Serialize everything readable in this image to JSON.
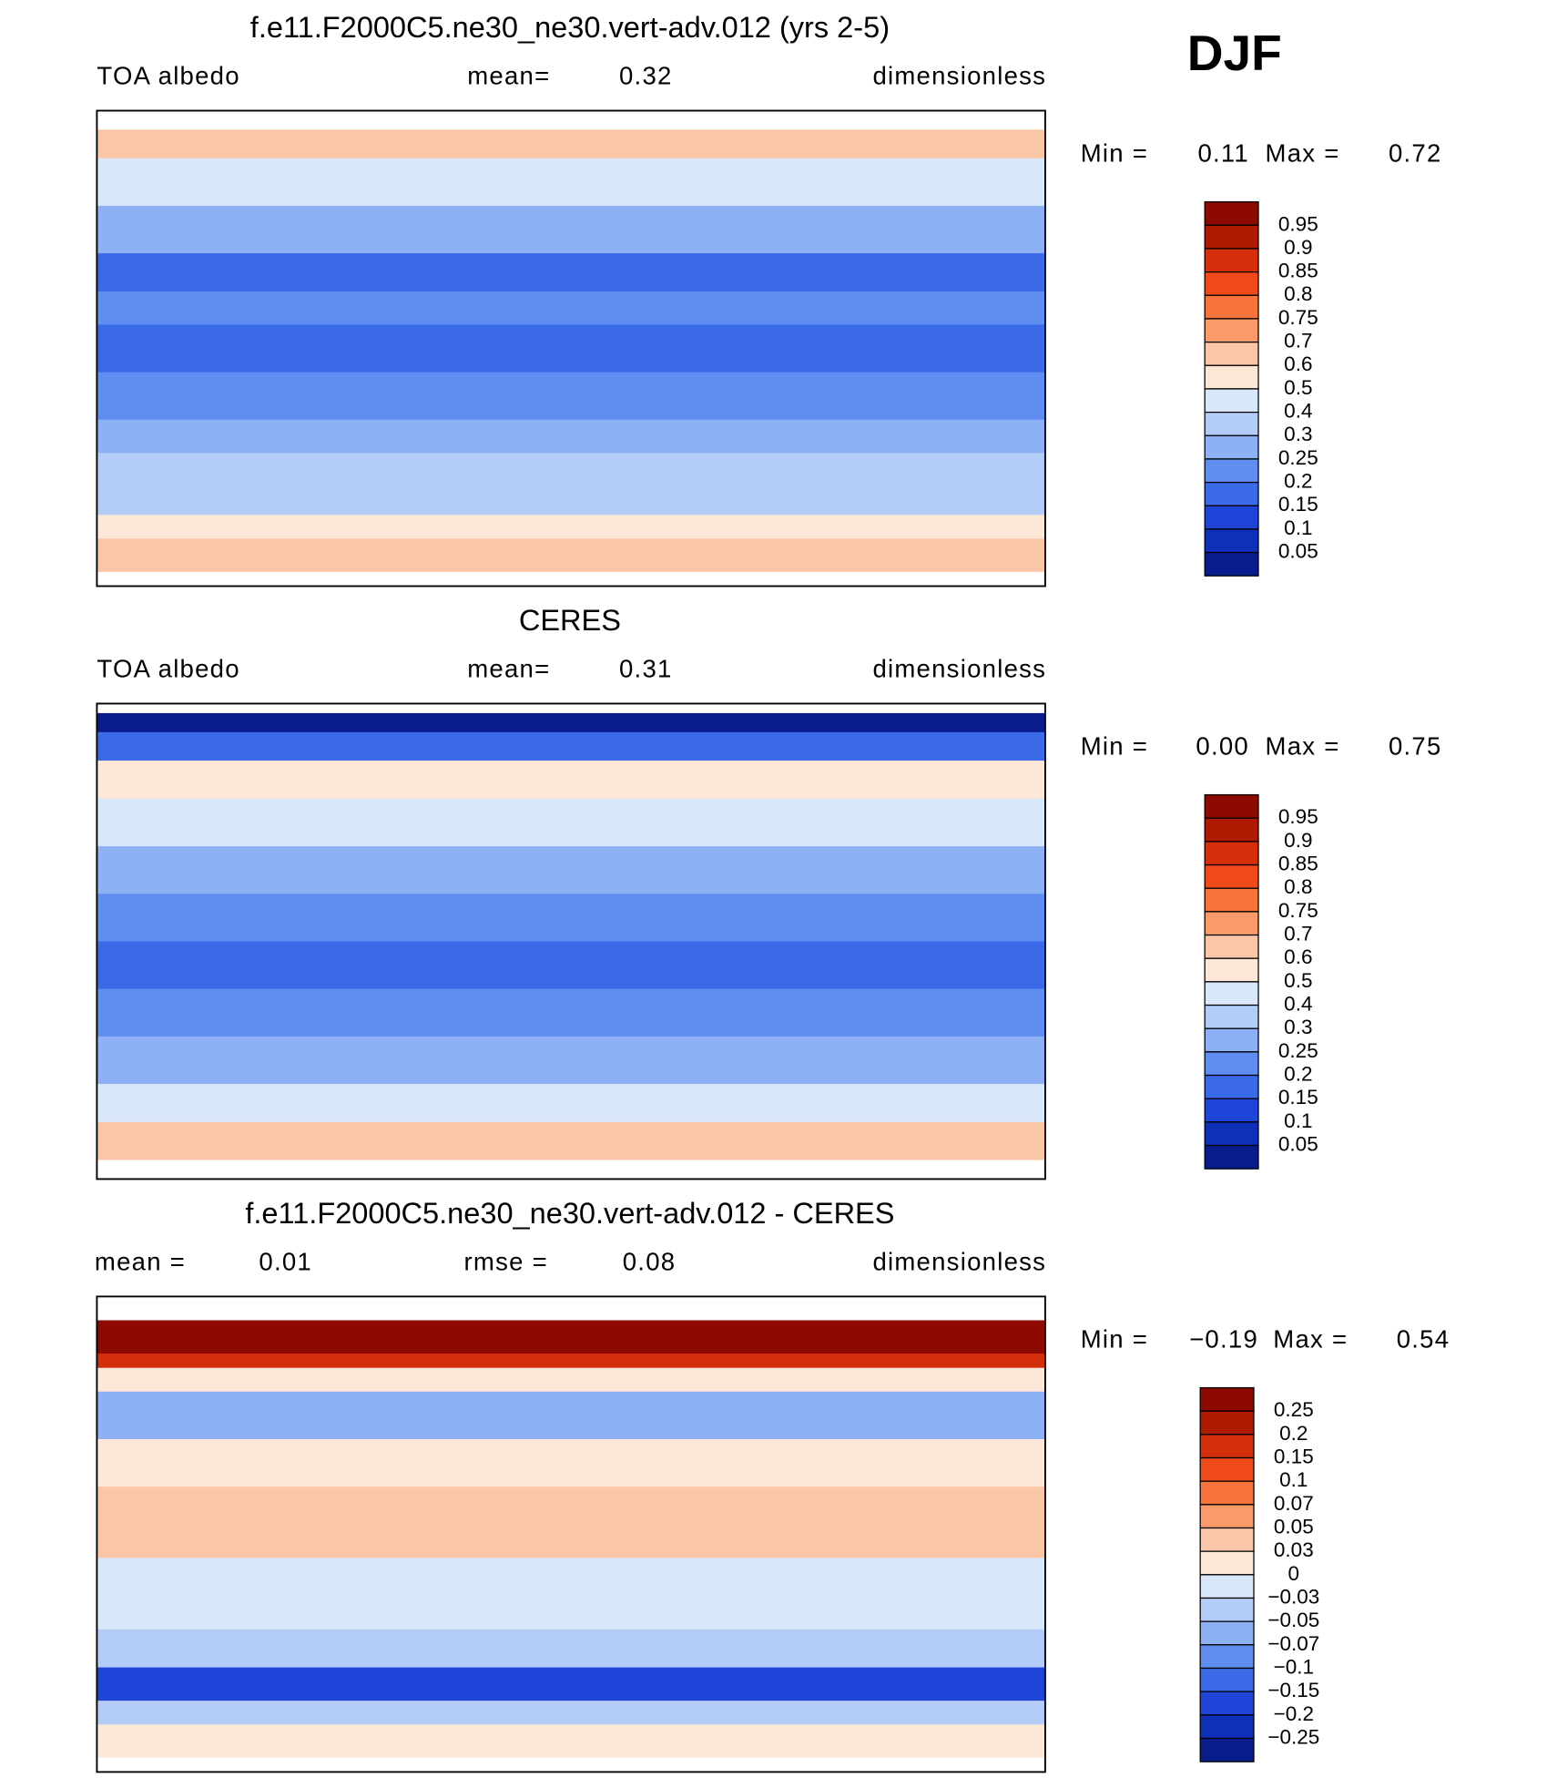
{
  "header": "DJF",
  "panels": [
    {
      "title": "f.e11.F2000C5.ne30_ne30.vert-adv.012 (yrs 2-5)",
      "subtitle": [
        "TOA  albedo",
        "mean=",
        "0.32",
        "dimensionless"
      ],
      "min_label": "Min =",
      "min": "0.11",
      "max_label": "Max =",
      "max": "0.72",
      "colorbar": [
        "0.95",
        "0.9",
        "0.85",
        "0.8",
        "0.75",
        "0.7",
        "0.6",
        "0.5",
        "0.4",
        "0.3",
        "0.25",
        "0.2",
        "0.15",
        "0.1",
        "0.05"
      ]
    },
    {
      "title": "CERES",
      "subtitle": [
        "TOA  albedo",
        "mean=",
        "0.31",
        "dimensionless"
      ],
      "min_label": "Min =",
      "min": "0.00",
      "max_label": "Max =",
      "max": "0.75",
      "colorbar": [
        "0.95",
        "0.9",
        "0.85",
        "0.8",
        "0.75",
        "0.7",
        "0.6",
        "0.5",
        "0.4",
        "0.3",
        "0.25",
        "0.2",
        "0.15",
        "0.1",
        "0.05"
      ]
    },
    {
      "title": "f.e11.F2000C5.ne30_ne30.vert-adv.012 - CERES",
      "subtitle": [
        "mean =",
        "0.01",
        "rmse =",
        "0.08",
        "dimensionless"
      ],
      "min_label": "Min =",
      "min": "−0.19",
      "max_label": "Max =",
      "max": "0.54",
      "colorbar": [
        "0.25",
        "0.2",
        "0.15",
        "0.1",
        "0.07",
        "0.05",
        "0.03",
        "0",
        "−0.03",
        "−0.05",
        "−0.07",
        "−0.1",
        "−0.15",
        "−0.2",
        "−0.25"
      ]
    }
  ],
  "colors": [
    "#8c0a00",
    "#b01a00",
    "#d42e0a",
    "#f04a1a",
    "#f8743c",
    "#fa9a6a",
    "#fbc6a8",
    "#fde8d8",
    "#d8e8fa",
    "#b4cdf8",
    "#8eb1f5",
    "#5f8ef0",
    "#3a6ae8",
    "#1f45d8",
    "#0e2fb8",
    "#081c8c"
  ]
}
